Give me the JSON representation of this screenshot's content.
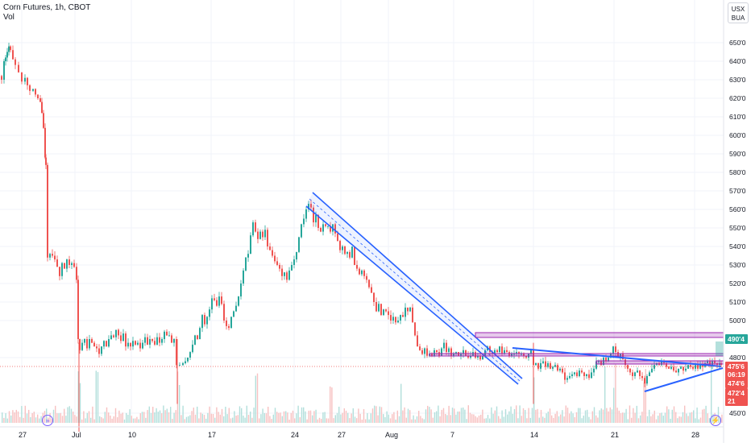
{
  "legend": {
    "symbol": "Corn Futures, 1h, CBOT",
    "volume_label": "Vol"
  },
  "currency": {
    "line1": "USX",
    "line2": "BUA"
  },
  "price_axis": [
    "650'0",
    "640'0",
    "630'0",
    "620'0",
    "610'0",
    "600'0",
    "590'0",
    "580'0",
    "570'0",
    "560'0",
    "550'0",
    "540'0",
    "530'0",
    "520'0",
    "510'0",
    "500'0",
    "480'0",
    "450'0"
  ],
  "time_axis": [
    "27",
    "Jul",
    "10",
    "17",
    "24",
    "27",
    "Aug",
    "7",
    "14",
    "21",
    "28"
  ],
  "price_tags": [
    {
      "text": "490'4",
      "color": "#26a69a"
    },
    {
      "text": "475'6",
      "color": "#ef5350"
    },
    {
      "text": "06:19",
      "color": "#ef5350"
    },
    {
      "text": "474'6",
      "color": "#ef5350"
    },
    {
      "text": "472'4",
      "color": "#ef5350"
    },
    {
      "text": "21",
      "color": "#ef5350"
    }
  ],
  "icons": {
    "left": "goto-realtime-icon",
    "right": "lightning-icon"
  },
  "colors": {
    "up": "#26a69a",
    "down": "#ef5350",
    "trend": "#2962ff",
    "zone": "#9c27b0",
    "grid": "#f0f3fa"
  },
  "chart_data": {
    "type": "candlestick",
    "title": "Corn Futures, 1h, CBOT",
    "ylim": [
      446,
      655
    ],
    "series": [
      {
        "name": "Vol",
        "values": []
      }
    ],
    "path_points": [
      [
        0,
        632
      ],
      [
        3,
        630
      ],
      [
        6,
        640
      ],
      [
        8,
        642
      ],
      [
        10,
        645
      ],
      [
        12,
        648
      ],
      [
        14,
        646
      ],
      [
        17,
        641
      ],
      [
        20,
        638
      ],
      [
        24,
        634
      ],
      [
        28,
        629
      ],
      [
        32,
        631
      ],
      [
        35,
        627
      ],
      [
        38,
        624
      ],
      [
        42,
        625
      ],
      [
        45,
        622
      ],
      [
        48,
        620
      ],
      [
        51,
        618
      ],
      [
        53,
        612
      ],
      [
        55,
        604
      ],
      [
        57,
        588
      ],
      [
        58,
        584
      ],
      [
        60,
        534
      ],
      [
        63,
        536
      ],
      [
        66,
        535
      ],
      [
        69,
        533
      ],
      [
        72,
        529
      ],
      [
        75,
        524
      ],
      [
        78,
        531
      ],
      [
        81,
        528
      ],
      [
        84,
        533
      ],
      [
        87,
        530
      ],
      [
        90,
        531
      ],
      [
        93,
        529
      ],
      [
        96,
        522
      ],
      [
        98,
        490
      ],
      [
        100,
        484
      ],
      [
        103,
        488
      ],
      [
        106,
        490
      ],
      [
        109,
        485
      ],
      [
        112,
        490
      ],
      [
        115,
        488
      ],
      [
        118,
        486
      ],
      [
        121,
        485
      ],
      [
        124,
        482
      ],
      [
        127,
        486
      ],
      [
        130,
        489
      ],
      [
        133,
        486
      ],
      [
        136,
        490
      ],
      [
        139,
        492
      ],
      [
        142,
        491
      ],
      [
        145,
        495
      ],
      [
        148,
        492
      ],
      [
        151,
        489
      ],
      [
        154,
        493
      ],
      [
        157,
        486
      ],
      [
        160,
        488
      ],
      [
        163,
        486
      ],
      [
        166,
        489
      ],
      [
        169,
        487
      ],
      [
        172,
        488
      ],
      [
        175,
        485
      ],
      [
        178,
        488
      ],
      [
        181,
        491
      ],
      [
        184,
        487
      ],
      [
        187,
        490
      ],
      [
        190,
        489
      ],
      [
        193,
        487
      ],
      [
        196,
        491
      ],
      [
        199,
        488
      ],
      [
        202,
        490
      ],
      [
        205,
        494
      ],
      [
        208,
        492
      ],
      [
        211,
        492
      ],
      [
        214,
        488
      ],
      [
        217,
        490
      ],
      [
        220,
        476
      ],
      [
        224,
        476
      ],
      [
        228,
        477
      ],
      [
        231,
        478
      ],
      [
        234,
        480
      ],
      [
        237,
        483
      ],
      [
        240,
        487
      ],
      [
        243,
        492
      ],
      [
        246,
        490
      ],
      [
        249,
        496
      ],
      [
        252,
        503
      ],
      [
        255,
        498
      ],
      [
        258,
        502
      ],
      [
        261,
        506
      ],
      [
        264,
        512
      ],
      [
        267,
        511
      ],
      [
        270,
        508
      ],
      [
        273,
        513
      ],
      [
        276,
        509
      ],
      [
        279,
        500
      ],
      [
        282,
        497
      ],
      [
        285,
        496
      ],
      [
        288,
        502
      ],
      [
        291,
        505
      ],
      [
        294,
        508
      ],
      [
        297,
        513
      ],
      [
        300,
        520
      ],
      [
        303,
        527
      ],
      [
        306,
        534
      ],
      [
        309,
        536
      ],
      [
        312,
        546
      ],
      [
        315,
        553
      ],
      [
        318,
        548
      ],
      [
        321,
        544
      ],
      [
        324,
        548
      ],
      [
        327,
        545
      ],
      [
        330,
        549
      ],
      [
        333,
        540
      ],
      [
        336,
        538
      ],
      [
        339,
        535
      ],
      [
        342,
        532
      ],
      [
        345,
        530
      ],
      [
        348,
        528
      ],
      [
        351,
        524
      ],
      [
        354,
        526
      ],
      [
        357,
        522
      ],
      [
        360,
        527
      ],
      [
        363,
        530
      ],
      [
        366,
        533
      ],
      [
        369,
        537
      ],
      [
        372,
        545
      ],
      [
        375,
        552
      ],
      [
        378,
        555
      ],
      [
        381,
        560
      ],
      [
        384,
        563
      ],
      [
        387,
        561
      ],
      [
        390,
        553
      ],
      [
        393,
        557
      ],
      [
        396,
        550
      ],
      [
        399,
        548
      ],
      [
        402,
        552
      ],
      [
        405,
        551
      ],
      [
        408,
        551
      ],
      [
        411,
        548
      ],
      [
        414,
        552
      ],
      [
        417,
        547
      ],
      [
        420,
        543
      ],
      [
        423,
        538
      ],
      [
        426,
        540
      ],
      [
        429,
        536
      ],
      [
        432,
        537
      ],
      [
        435,
        534
      ],
      [
        438,
        540
      ],
      [
        441,
        530
      ],
      [
        444,
        528
      ],
      [
        447,
        525
      ],
      [
        450,
        527
      ],
      [
        453,
        524
      ],
      [
        456,
        522
      ],
      [
        459,
        518
      ],
      [
        462,
        515
      ],
      [
        465,
        510
      ],
      [
        468,
        505
      ],
      [
        471,
        509
      ],
      [
        474,
        503
      ],
      [
        477,
        506
      ],
      [
        480,
        505
      ],
      [
        483,
        503
      ],
      [
        486,
        500
      ],
      [
        489,
        502
      ],
      [
        492,
        499
      ],
      [
        495,
        500
      ],
      [
        498,
        503
      ],
      [
        501,
        502
      ],
      [
        504,
        507
      ],
      [
        507,
        505
      ],
      [
        510,
        507
      ],
      [
        513,
        499
      ],
      [
        516,
        492
      ],
      [
        519,
        486
      ],
      [
        522,
        484
      ],
      [
        525,
        482
      ],
      [
        528,
        485
      ],
      [
        531,
        481
      ],
      [
        534,
        482
      ],
      [
        537,
        481
      ],
      [
        540,
        484
      ],
      [
        543,
        483
      ],
      [
        546,
        481
      ],
      [
        549,
        485
      ],
      [
        552,
        488
      ],
      [
        555,
        483
      ],
      [
        558,
        485
      ],
      [
        561,
        481
      ],
      [
        564,
        482
      ],
      [
        567,
        483
      ],
      [
        570,
        481
      ],
      [
        573,
        482
      ],
      [
        576,
        484
      ],
      [
        579,
        481
      ],
      [
        582,
        480
      ],
      [
        585,
        481
      ],
      [
        588,
        483
      ],
      [
        591,
        480
      ],
      [
        594,
        481
      ],
      [
        597,
        479
      ],
      [
        600,
        481
      ],
      [
        603,
        484
      ],
      [
        606,
        486
      ],
      [
        609,
        483
      ],
      [
        612,
        482
      ],
      [
        615,
        484
      ],
      [
        618,
        483
      ],
      [
        621,
        486
      ],
      [
        624,
        482
      ],
      [
        627,
        484
      ],
      [
        630,
        483
      ],
      [
        633,
        481
      ],
      [
        636,
        482
      ],
      [
        639,
        482
      ],
      [
        642,
        483
      ],
      [
        645,
        482
      ],
      [
        648,
        482
      ],
      [
        651,
        481
      ],
      [
        654,
        480
      ],
      [
        657,
        482
      ],
      [
        660,
        484
      ],
      [
        663,
        476
      ],
      [
        666,
        477
      ],
      [
        669,
        474
      ],
      [
        672,
        477
      ],
      [
        675,
        478
      ],
      [
        678,
        475
      ],
      [
        681,
        477
      ],
      [
        684,
        474
      ],
      [
        687,
        475
      ],
      [
        690,
        476
      ],
      [
        693,
        473
      ],
      [
        696,
        474
      ],
      [
        699,
        472
      ],
      [
        702,
        468
      ],
      [
        705,
        469
      ],
      [
        708,
        470
      ],
      [
        711,
        471
      ],
      [
        714,
        472
      ],
      [
        717,
        470
      ],
      [
        720,
        473
      ],
      [
        723,
        472
      ],
      [
        726,
        470
      ],
      [
        729,
        471
      ],
      [
        732,
        469
      ],
      [
        735,
        472
      ],
      [
        738,
        474
      ],
      [
        741,
        478
      ],
      [
        744,
        478
      ],
      [
        747,
        476
      ],
      [
        750,
        480
      ],
      [
        753,
        478
      ],
      [
        756,
        480
      ],
      [
        759,
        482
      ],
      [
        762,
        486
      ],
      [
        765,
        483
      ],
      [
        768,
        480
      ],
      [
        771,
        482
      ],
      [
        774,
        479
      ],
      [
        777,
        476
      ],
      [
        780,
        474
      ],
      [
        783,
        472
      ],
      [
        786,
        470
      ],
      [
        789,
        472
      ],
      [
        792,
        473
      ],
      [
        795,
        470
      ],
      [
        798,
        469
      ],
      [
        801,
        466
      ],
      [
        804,
        470
      ],
      [
        807,
        472
      ],
      [
        810,
        474
      ],
      [
        813,
        476
      ],
      [
        816,
        477
      ],
      [
        819,
        476
      ],
      [
        822,
        478
      ],
      [
        825,
        477
      ],
      [
        828,
        475
      ],
      [
        831,
        474
      ],
      [
        834,
        475
      ],
      [
        837,
        473
      ],
      [
        840,
        472
      ],
      [
        843,
        474
      ],
      [
        846,
        475
      ],
      [
        849,
        473
      ],
      [
        852,
        474
      ],
      [
        855,
        476
      ],
      [
        858,
        475
      ],
      [
        861,
        474
      ],
      [
        864,
        476
      ],
      [
        867,
        474
      ],
      [
        870,
        476
      ],
      [
        873,
        475
      ],
      [
        876,
        477
      ],
      [
        879,
        478
      ],
      [
        882,
        476
      ],
      [
        885,
        478
      ],
      [
        888,
        477
      ],
      [
        891,
        476
      ],
      [
        894,
        477
      ],
      [
        896,
        476
      ]
    ]
  }
}
